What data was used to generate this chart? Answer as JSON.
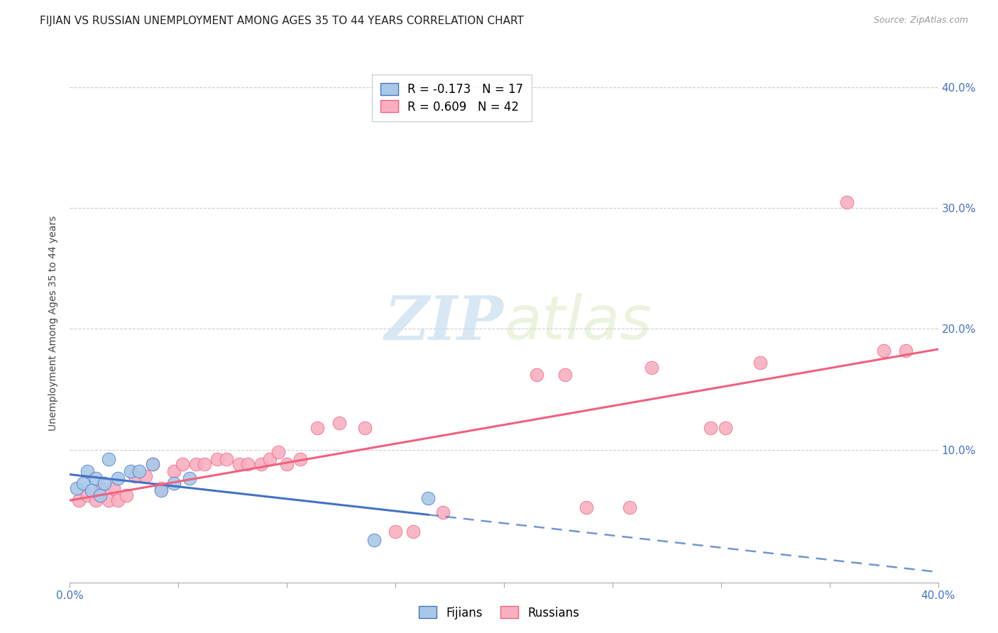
{
  "title": "FIJIAN VS RUSSIAN UNEMPLOYMENT AMONG AGES 35 TO 44 YEARS CORRELATION CHART",
  "source": "Source: ZipAtlas.com",
  "ylabel": "Unemployment Among Ages 35 to 44 years",
  "xlim": [
    0.0,
    0.4
  ],
  "ylim": [
    -0.01,
    0.42
  ],
  "fijian_R": -0.173,
  "fijian_N": 17,
  "russian_R": 0.609,
  "russian_N": 42,
  "fijian_color": "#a8c8e8",
  "russian_color": "#f8b0c0",
  "fijian_line_color": "#4472c4",
  "russian_line_color": "#f06080",
  "fijian_x": [
    0.003,
    0.006,
    0.008,
    0.01,
    0.012,
    0.014,
    0.016,
    0.018,
    0.022,
    0.028,
    0.032,
    0.038,
    0.042,
    0.048,
    0.055,
    0.14,
    0.165
  ],
  "fijian_y": [
    0.068,
    0.072,
    0.082,
    0.066,
    0.076,
    0.062,
    0.072,
    0.092,
    0.076,
    0.082,
    0.082,
    0.088,
    0.066,
    0.072,
    0.076,
    0.025,
    0.06
  ],
  "russian_x": [
    0.004,
    0.008,
    0.012,
    0.014,
    0.018,
    0.02,
    0.022,
    0.026,
    0.03,
    0.035,
    0.038,
    0.042,
    0.048,
    0.052,
    0.058,
    0.062,
    0.068,
    0.072,
    0.078,
    0.082,
    0.088,
    0.092,
    0.096,
    0.1,
    0.106,
    0.114,
    0.124,
    0.136,
    0.15,
    0.158,
    0.172,
    0.215,
    0.228,
    0.238,
    0.258,
    0.268,
    0.295,
    0.302,
    0.318,
    0.358,
    0.375,
    0.385
  ],
  "russian_y": [
    0.058,
    0.062,
    0.058,
    0.068,
    0.058,
    0.068,
    0.058,
    0.062,
    0.078,
    0.078,
    0.088,
    0.068,
    0.082,
    0.088,
    0.088,
    0.088,
    0.092,
    0.092,
    0.088,
    0.088,
    0.088,
    0.092,
    0.098,
    0.088,
    0.092,
    0.118,
    0.122,
    0.118,
    0.032,
    0.032,
    0.048,
    0.162,
    0.162,
    0.052,
    0.052,
    0.168,
    0.118,
    0.118,
    0.172,
    0.305,
    0.182,
    0.182
  ],
  "fijian_trendline_x": [
    0.0,
    0.4
  ],
  "russian_trendline_x": [
    0.0,
    0.4
  ],
  "watermark_zip": "ZIP",
  "watermark_atlas": "atlas"
}
